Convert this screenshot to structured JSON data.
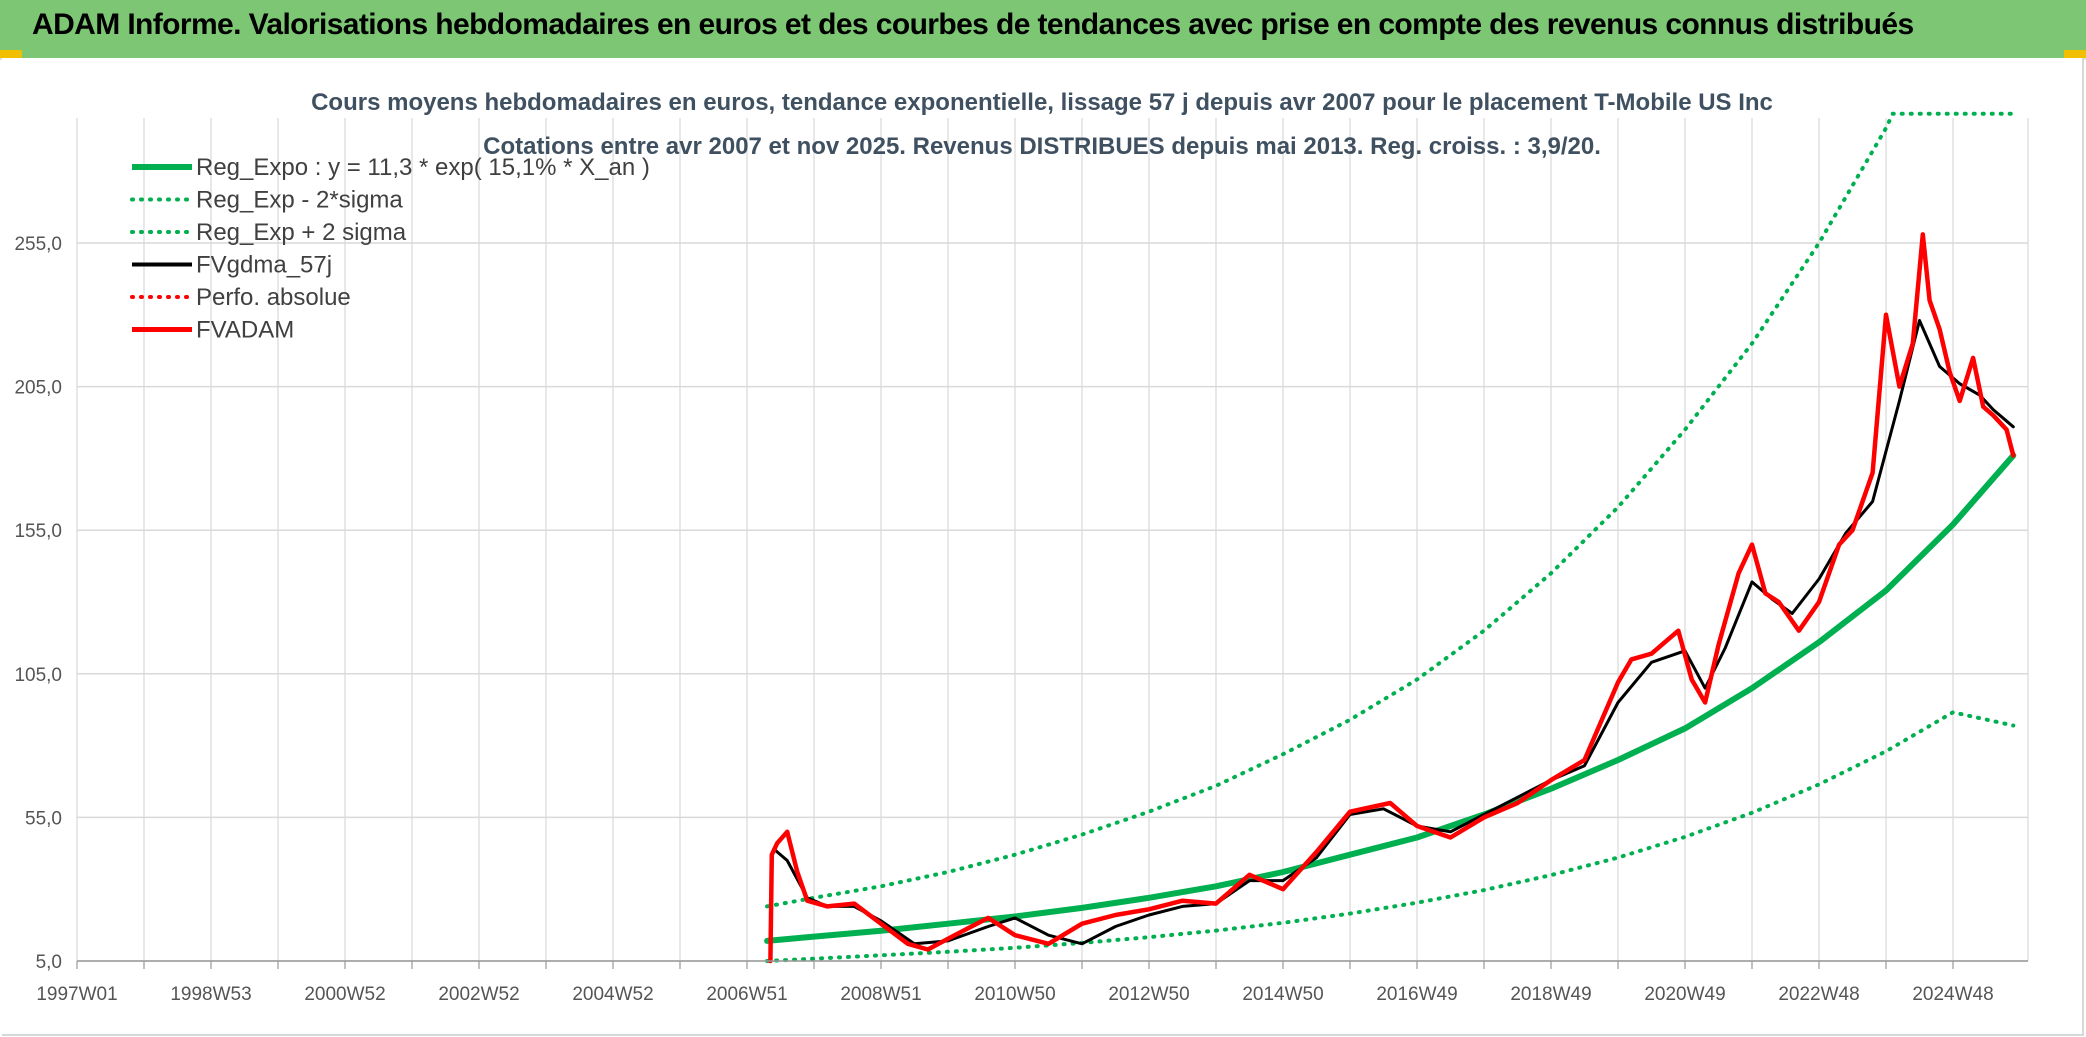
{
  "header": {
    "title": "ADAM Informe. Valorisations hebdomadaires en euros et des courbes de tendances avec prise en compte des revenus connus distribués"
  },
  "colors": {
    "header_bg": "#7cc674",
    "green": "#00b050",
    "black": "#000000",
    "red": "#ff0000",
    "grid": "#d9d9d9"
  },
  "chart_data": {
    "type": "line",
    "title_lines": [
      "Cours moyens hebdomadaires en euros, tendance exponentielle, lissage 57 j depuis avr 2007 pour le placement T-Mobile US Inc",
      "Cotations entre avr 2007 et nov 2025. Revenus DISTRIBUES depuis mai 2013. Reg. croiss. : 3,9/20."
    ],
    "xlabel": "",
    "ylabel": "",
    "x_ticks": [
      "1997W01",
      "1998W53",
      "2000W52",
      "2002W52",
      "2004W52",
      "2006W51",
      "2008W51",
      "2010W50",
      "2012W50",
      "2014W50",
      "2016W49",
      "2018W49",
      "2020W49",
      "2022W48",
      "2024W48"
    ],
    "y_ticks": [
      "5,0",
      "55,0",
      "105,0",
      "155,0",
      "205,0",
      "255,0"
    ],
    "xlim": [
      1997.0,
      2026.0
    ],
    "ylim": [
      5,
      300
    ],
    "grid": true,
    "legend_position": "top-left",
    "series": [
      {
        "name": "Reg_Expo : y = 11,3 * exp( 15,1% *  X_an )",
        "color": "#00b050",
        "style": "solid",
        "x": [
          2007.3,
          2008,
          2009,
          2010,
          2011,
          2012,
          2013,
          2014,
          2015,
          2016,
          2017,
          2018,
          2019,
          2020,
          2021,
          2022,
          2023,
          2024,
          2025,
          2025.9
        ],
        "y": [
          12,
          13.5,
          15.5,
          18,
          20.5,
          23.5,
          27,
          31,
          36,
          42,
          48,
          56,
          65,
          75,
          86,
          100,
          116,
          134,
          157,
          181
        ]
      },
      {
        "name": "Reg_Exp - 2*sigma",
        "color": "#00b050",
        "style": "dotted",
        "x": [
          2007.3,
          2008,
          2009,
          2010,
          2011,
          2012,
          2013,
          2014,
          2015,
          2016,
          2017,
          2018,
          2019,
          2020,
          2021,
          2022,
          2023,
          2024,
          2025,
          2025.9
        ],
        "y": [
          5,
          5.8,
          7,
          8.2,
          9.6,
          11.3,
          13.3,
          15.6,
          18.3,
          21.5,
          25.3,
          29.7,
          34.9,
          41,
          48.2,
          56.6,
          66.5,
          78,
          91.6,
          87
        ]
      },
      {
        "name": "Reg_Exp + 2 sigma",
        "color": "#00b050",
        "style": "dotted",
        "x": [
          2007.3,
          2008,
          2009,
          2010,
          2011,
          2012,
          2013,
          2014,
          2015,
          2016,
          2017,
          2018,
          2019,
          2020,
          2021,
          2022,
          2023,
          2024,
          2024.1,
          2025.9
        ],
        "y": [
          24,
          27,
          31,
          36,
          42,
          49,
          57,
          66,
          77,
          89,
          103,
          120,
          140,
          163,
          190,
          220,
          255,
          295,
          300,
          300
        ]
      },
      {
        "name": "FVgdma_57j",
        "color": "#000000",
        "style": "solid",
        "x": [
          2007.4,
          2007.6,
          2007.9,
          2008.2,
          2008.6,
          2009.0,
          2009.5,
          2010.0,
          2010.6,
          2011.0,
          2011.5,
          2012.0,
          2012.5,
          2013.0,
          2013.5,
          2014.0,
          2014.5,
          2015.0,
          2015.5,
          2016.0,
          2016.5,
          2017.0,
          2017.5,
          2018.0,
          2018.5,
          2019.0,
          2019.5,
          2020.0,
          2020.5,
          2021.0,
          2021.3,
          2021.6,
          2022.0,
          2022.3,
          2022.6,
          2023.0,
          2023.4,
          2023.8,
          2024.2,
          2024.5,
          2024.8,
          2025.1,
          2025.4,
          2025.6,
          2025.9
        ],
        "y": [
          44,
          40,
          27,
          24,
          24,
          19,
          11,
          12,
          17,
          20,
          14,
          11,
          17,
          21,
          24,
          25,
          33,
          33,
          41,
          56,
          58,
          52,
          50,
          56,
          62,
          68,
          73,
          95,
          109,
          113,
          100,
          114,
          137,
          131,
          126,
          138,
          154,
          165,
          200,
          228,
          212,
          206,
          202,
          197,
          191
        ]
      },
      {
        "name": "Perfo. absolue",
        "color": "#ff0000",
        "style": "dotted",
        "x": [],
        "y": []
      },
      {
        "name": "FVADAM",
        "color": "#ff0000",
        "style": "solid",
        "x": [
          2007.35,
          2007.37,
          2007.45,
          2007.6,
          2007.75,
          2007.9,
          2008.2,
          2008.6,
          2009.0,
          2009.4,
          2009.7,
          2010.1,
          2010.6,
          2011.0,
          2011.5,
          2012.0,
          2012.5,
          2013.0,
          2013.5,
          2014.0,
          2014.5,
          2015.0,
          2015.5,
          2016.0,
          2016.6,
          2017.0,
          2017.5,
          2018.0,
          2018.5,
          2019.0,
          2019.5,
          2020.0,
          2020.2,
          2020.5,
          2020.9,
          2021.1,
          2021.3,
          2021.5,
          2021.8,
          2022.0,
          2022.2,
          2022.4,
          2022.7,
          2023.0,
          2023.3,
          2023.5,
          2023.8,
          2024.0,
          2024.2,
          2024.4,
          2024.55,
          2024.65,
          2024.8,
          2024.95,
          2025.1,
          2025.3,
          2025.45,
          2025.6,
          2025.8,
          2025.9
        ],
        "y": [
          5,
          42,
          46,
          50,
          36,
          26,
          24,
          25,
          18,
          11,
          9,
          14,
          20,
          14,
          11,
          18,
          21,
          23,
          26,
          25,
          35,
          30,
          43,
          57,
          60,
          52,
          48,
          55,
          60,
          68,
          75,
          102,
          110,
          112,
          120,
          103,
          95,
          115,
          140,
          150,
          133,
          130,
          120,
          130,
          150,
          155,
          175,
          230,
          205,
          220,
          258,
          235,
          225,
          210,
          200,
          215,
          198,
          195,
          190,
          181
        ]
      }
    ]
  }
}
